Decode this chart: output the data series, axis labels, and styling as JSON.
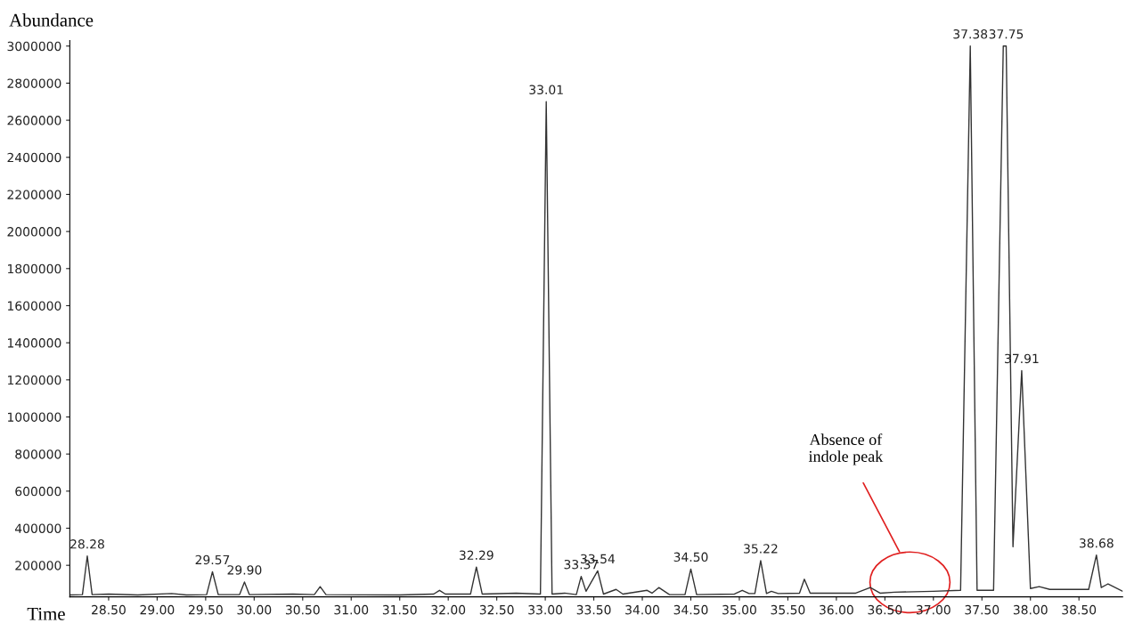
{
  "chart_data": {
    "type": "line",
    "xlabel": "Time",
    "ylabel": "Abundance",
    "color": "#333333",
    "x": [
      28.1,
      28.23,
      28.28,
      28.33,
      28.5,
      28.8,
      29.15,
      29.3,
      29.51,
      29.57,
      29.63,
      29.85,
      29.9,
      29.95,
      30.4,
      30.62,
      30.68,
      30.74,
      31.5,
      31.85,
      31.91,
      31.97,
      32.23,
      32.29,
      32.35,
      32.7,
      32.95,
      33.01,
      33.07,
      33.2,
      33.32,
      33.37,
      33.42,
      33.54,
      33.6,
      33.73,
      33.8,
      34.05,
      34.1,
      34.17,
      34.28,
      34.44,
      34.5,
      34.56,
      34.95,
      35.03,
      35.1,
      35.16,
      35.22,
      35.28,
      35.33,
      35.4,
      35.62,
      35.67,
      35.73,
      36.2,
      36.35,
      36.45,
      36.6,
      37.0,
      37.28,
      37.38,
      37.45,
      37.62,
      37.72,
      37.75,
      37.82,
      37.91,
      38.0,
      38.09,
      38.2,
      38.6,
      38.68,
      38.73,
      38.8,
      38.95
    ],
    "values": [
      40000,
      42000,
      250000,
      42000,
      45000,
      40000,
      48000,
      40000,
      42000,
      165000,
      42000,
      42000,
      110000,
      42000,
      45000,
      42000,
      85000,
      42000,
      40000,
      45000,
      65000,
      45000,
      45000,
      190000,
      45000,
      50000,
      45000,
      2700000,
      45000,
      50000,
      42000,
      140000,
      60000,
      170000,
      45000,
      70000,
      45000,
      65000,
      50000,
      80000,
      42000,
      42000,
      180000,
      42000,
      45000,
      65000,
      48000,
      48000,
      225000,
      48000,
      60000,
      48000,
      50000,
      125000,
      50000,
      50000,
      80000,
      50000,
      55000,
      60000,
      65000,
      3000000,
      65000,
      65000,
      3000000,
      3000000,
      300000,
      1250000,
      75000,
      85000,
      70000,
      70000,
      255000,
      80000,
      100000,
      60000
    ],
    "xlim": [
      28.1,
      38.95
    ],
    "ylim": [
      30000,
      3030000
    ],
    "xticks": [
      {
        "value": 28.5,
        "label": "28.50"
      },
      {
        "value": 29,
        "label": "29.00"
      },
      {
        "value": 29.5,
        "label": "29.50"
      },
      {
        "value": 30,
        "label": "30.00"
      },
      {
        "value": 30.5,
        "label": "30.50"
      },
      {
        "value": 31,
        "label": "31.00"
      },
      {
        "value": 31.5,
        "label": "31.50"
      },
      {
        "value": 32,
        "label": "32.00"
      },
      {
        "value": 32.5,
        "label": "32.50"
      },
      {
        "value": 33,
        "label": "33.00"
      },
      {
        "value": 33.5,
        "label": "33.50"
      },
      {
        "value": 34,
        "label": "34.00"
      },
      {
        "value": 34.5,
        "label": "34.50"
      },
      {
        "value": 35,
        "label": "35.00"
      },
      {
        "value": 35.5,
        "label": "35.50"
      },
      {
        "value": 36,
        "label": "36.00"
      },
      {
        "value": 36.5,
        "label": "36.50"
      },
      {
        "value": 37,
        "label": "37.00"
      },
      {
        "value": 37.5,
        "label": "37.50"
      },
      {
        "value": 38,
        "label": "38.00"
      },
      {
        "value": 38.5,
        "label": "38.50"
      }
    ],
    "yticks": [
      200000,
      400000,
      600000,
      800000,
      1000000,
      1200000,
      1400000,
      1600000,
      1800000,
      2000000,
      2200000,
      2400000,
      2600000,
      2800000,
      3000000
    ],
    "annotations": [
      {
        "text": "28.28",
        "x": 28.28,
        "y": 250000
      },
      {
        "text": "29.57",
        "x": 29.57,
        "y": 165000
      },
      {
        "text": "29.90",
        "x": 29.9,
        "y": 110000
      },
      {
        "text": "32.29",
        "x": 32.29,
        "y": 190000
      },
      {
        "text": "33.01",
        "x": 33.01,
        "y": 2700000
      },
      {
        "text": "33.37",
        "x": 33.37,
        "y": 140000
      },
      {
        "text": "33.54",
        "x": 33.54,
        "y": 170000
      },
      {
        "text": "34.50",
        "x": 34.5,
        "y": 180000
      },
      {
        "text": "35.22",
        "x": 35.22,
        "y": 225000
      },
      {
        "text": "37.38",
        "x": 37.38,
        "y": 3000000
      },
      {
        "text": "37.75",
        "x": 37.75,
        "y": 3000000
      },
      {
        "text": "37.91",
        "x": 37.91,
        "y": 1250000
      },
      {
        "text": "38.68",
        "x": 38.68,
        "y": 255000
      },
      "Absence of\nindole peak"
    ]
  }
}
